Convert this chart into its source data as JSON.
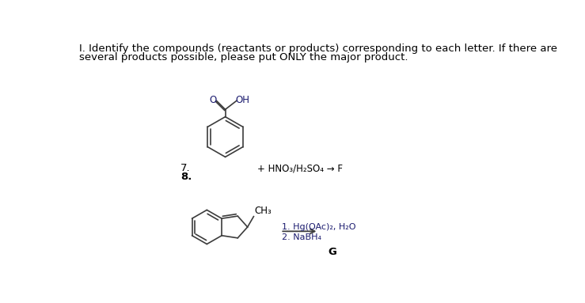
{
  "background_color": "#ffffff",
  "title_line1": "I. Identify the compounds (reactants or products) corresponding to each letter. If there are",
  "title_line2": "several products possible, please put ONLY the major product.",
  "label_7": "7.",
  "label_8": "8.",
  "reaction1_text": "+ HNO₃/H₂SO₄ → F",
  "reaction2_line1": "1. Hg(OAc)₂, H₂O",
  "reaction2_line2": "2. NaBH₄",
  "label_G": "G",
  "ch3_label": "CH₃",
  "benzoic_acid_oh": "OH",
  "benzoic_acid_o": "O",
  "font_size_title": 9.5,
  "font_size_labels": 9.5,
  "font_size_reaction": 8.5,
  "font_size_small": 8.0,
  "text_color": "#000000",
  "bond_color": "#3c3c3c",
  "lw": 1.2
}
